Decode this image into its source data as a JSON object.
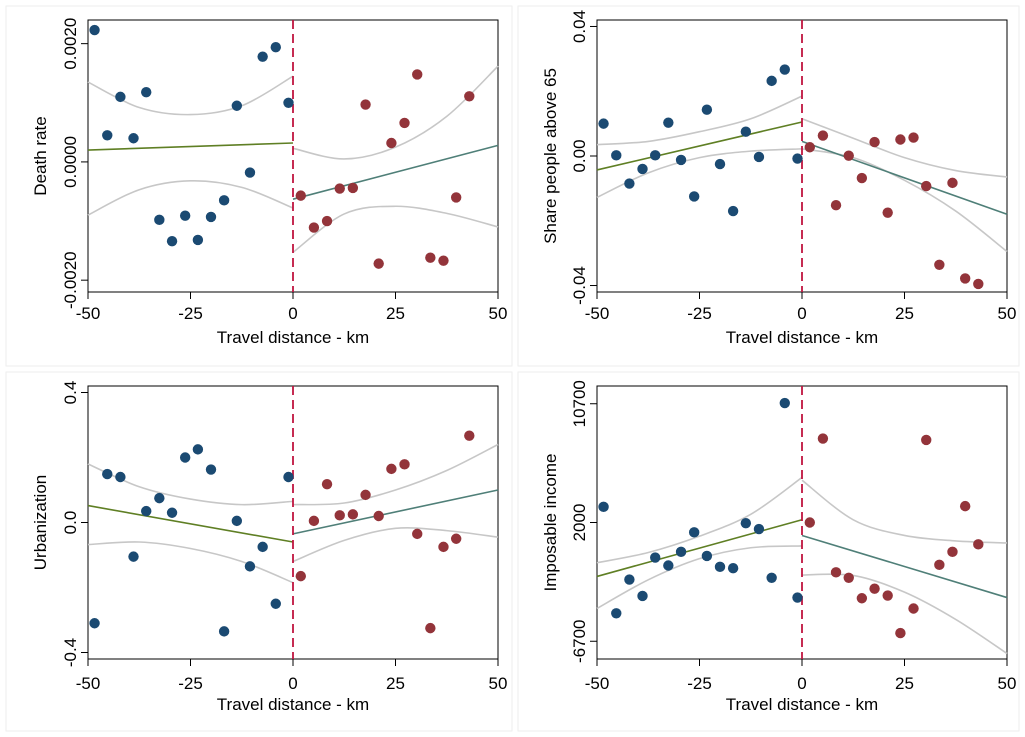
{
  "colors": {
    "left_points": "#1b4a72",
    "right_points": "#93343a",
    "left_fit": "#5f7f24",
    "right_fit": "#4f7f78",
    "ci": "#c7c7c7",
    "cutoff": "#c0143f",
    "frame": "#000000",
    "panel_border": "#eeeeee"
  },
  "chart_data": [
    {
      "type": "scatter",
      "xlabel": "Travel distance - km",
      "ylabel": "Death rate",
      "xlim": [
        -50,
        50
      ],
      "ylim": [
        -0.0022,
        0.0024
      ],
      "x_ticks": [
        -50,
        -25,
        0,
        25,
        50
      ],
      "x_tick_labels": [
        "-50",
        "-25",
        "0",
        "25",
        "50"
      ],
      "y_ticks": [
        -0.002,
        0,
        0.002
      ],
      "y_tick_labels": [
        "-0.0020",
        "0.0000",
        "0.0020"
      ],
      "cutoff": 0,
      "grid": false,
      "series": [
        {
          "side": "left",
          "points": [
            [
              -48.4,
              0.00223
            ],
            [
              -45.3,
              0.00045
            ],
            [
              -42.1,
              0.0011
            ],
            [
              -38.9,
              0.0004
            ],
            [
              -35.8,
              0.00118
            ],
            [
              -32.6,
              -0.00098
            ],
            [
              -29.5,
              -0.00134
            ],
            [
              -26.3,
              -0.00091
            ],
            [
              -23.2,
              -0.00132
            ],
            [
              -20.0,
              -0.00093
            ],
            [
              -16.8,
              -0.00065
            ],
            [
              -13.7,
              0.00095
            ],
            [
              -10.5,
              -0.00018
            ],
            [
              -7.4,
              0.00178
            ],
            [
              -4.2,
              0.00194
            ],
            [
              -1.1,
              0.001
            ]
          ]
        },
        {
          "side": "right",
          "points": [
            [
              1.9,
              -0.00057
            ],
            [
              5.1,
              -0.00111
            ],
            [
              8.3,
              -0.001
            ],
            [
              11.4,
              -0.00045
            ],
            [
              14.6,
              -0.00044
            ],
            [
              17.7,
              0.00097
            ],
            [
              20.9,
              -0.00172
            ],
            [
              24.0,
              0.00032
            ],
            [
              27.2,
              0.00066
            ],
            [
              30.3,
              0.00148
            ],
            [
              33.5,
              -0.00162
            ],
            [
              36.7,
              -0.00167
            ],
            [
              39.8,
              -0.0006
            ],
            [
              43.0,
              0.00111
            ]
          ]
        }
      ],
      "fit_left": {
        "x": [
          -50,
          0
        ],
        "y": [
          0.0002,
          0.00032
        ]
      },
      "fit_right": {
        "x": [
          0,
          50
        ],
        "y": [
          -0.00063,
          0.00028
        ]
      },
      "ci_left_upper": [
        [
          -50,
          0.00135
        ],
        [
          -37.5,
          0.00092
        ],
        [
          -25,
          0.0008
        ],
        [
          -12.5,
          0.00095
        ],
        [
          0,
          0.00145
        ]
      ],
      "ci_left_lower": [
        [
          -50,
          -0.0009
        ],
        [
          -37.5,
          -0.00047
        ],
        [
          -25,
          -0.00032
        ],
        [
          -12.5,
          -0.00043
        ],
        [
          0,
          -0.00078
        ]
      ],
      "ci_right_upper": [
        [
          0,
          0.00023
        ],
        [
          12.5,
          5e-05
        ],
        [
          25,
          0.00025
        ],
        [
          37.5,
          0.00077
        ],
        [
          50,
          0.00162
        ]
      ],
      "ci_right_lower": [
        [
          0,
          -0.00153
        ],
        [
          12.5,
          -0.00088
        ],
        [
          25,
          -0.00075
        ],
        [
          37.5,
          -0.00087
        ],
        [
          50,
          -0.0011
        ]
      ]
    },
    {
      "type": "scatter",
      "xlabel": "Travel distance - km",
      "ylabel": "Share people above 65",
      "xlim": [
        -50,
        50
      ],
      "ylim": [
        -0.042,
        0.042
      ],
      "x_ticks": [
        -50,
        -25,
        0,
        25,
        50
      ],
      "x_tick_labels": [
        "-50",
        "-25",
        "0",
        "25",
        "50"
      ],
      "y_ticks": [
        -0.04,
        0,
        0.04
      ],
      "y_tick_labels": [
        "-0.04",
        "0.00",
        "0.04"
      ],
      "cutoff": 0,
      "grid": false,
      "series": [
        {
          "side": "left",
          "points": [
            [
              -48.4,
              0.01
            ],
            [
              -45.3,
              0.0002
            ],
            [
              -42.1,
              -0.0085
            ],
            [
              -38.9,
              -0.004
            ],
            [
              -35.8,
              0.0002
            ],
            [
              -32.6,
              0.0103
            ],
            [
              -29.5,
              -0.0012
            ],
            [
              -26.3,
              -0.0125
            ],
            [
              -23.2,
              0.0143
            ],
            [
              -20.0,
              -0.0025
            ],
            [
              -16.8,
              -0.017
            ],
            [
              -13.7,
              0.0075
            ],
            [
              -10.5,
              -0.0003
            ],
            [
              -7.4,
              0.0232
            ],
            [
              -4.2,
              0.0267
            ],
            [
              -1.1,
              -0.0008
            ]
          ]
        },
        {
          "side": "right",
          "points": [
            [
              1.9,
              0.0027
            ],
            [
              5.1,
              0.0063
            ],
            [
              8.3,
              -0.0152
            ],
            [
              11.4,
              0.0001
            ],
            [
              14.6,
              -0.0068
            ],
            [
              17.7,
              0.0043
            ],
            [
              20.9,
              -0.0175
            ],
            [
              24.0,
              0.0051
            ],
            [
              27.2,
              0.0057
            ],
            [
              30.3,
              -0.0093
            ],
            [
              33.5,
              -0.0336
            ],
            [
              36.7,
              -0.0083
            ],
            [
              39.8,
              -0.0378
            ],
            [
              43.0,
              -0.0395
            ]
          ]
        }
      ],
      "fit_left": {
        "x": [
          -50,
          0
        ],
        "y": [
          -0.0043,
          0.0105
        ]
      },
      "fit_right": {
        "x": [
          0,
          50
        ],
        "y": [
          0.0045,
          -0.018
        ]
      },
      "ci_left_upper": [
        [
          -50,
          0.0035
        ],
        [
          -37.5,
          0.0045
        ],
        [
          -25,
          0.0075
        ],
        [
          -12.5,
          0.0115
        ],
        [
          0,
          0.0185
        ]
      ],
      "ci_left_lower": [
        [
          -50,
          -0.0128
        ],
        [
          -37.5,
          -0.0052
        ],
        [
          -25,
          -0.0005
        ],
        [
          -12.5,
          0.0015
        ],
        [
          0,
          0.0022
        ]
      ],
      "ci_right_upper": [
        [
          0,
          0.0115
        ],
        [
          12.5,
          0.0055
        ],
        [
          25,
          -0.0005
        ],
        [
          37.5,
          -0.0045
        ],
        [
          50,
          -0.0065
        ]
      ],
      "ci_right_lower": [
        [
          0,
          0.0022
        ],
        [
          12.5,
          -0.0005
        ],
        [
          25,
          -0.0075
        ],
        [
          37.5,
          -0.017
        ],
        [
          50,
          -0.0295
        ]
      ]
    },
    {
      "type": "scatter",
      "xlabel": "Travel distance - km",
      "ylabel": "Urbanization",
      "xlim": [
        -50,
        50
      ],
      "ylim": [
        -0.42,
        0.42
      ],
      "x_ticks": [
        -50,
        -25,
        0,
        25,
        50
      ],
      "x_tick_labels": [
        "-50",
        "-25",
        "0",
        "25",
        "50"
      ],
      "y_ticks": [
        -0.4,
        0,
        0.4
      ],
      "y_tick_labels": [
        "-0.4",
        "0.0",
        "0.4"
      ],
      "cutoff": 0,
      "grid": false,
      "series": [
        {
          "side": "left",
          "points": [
            [
              -48.4,
              -0.31
            ],
            [
              -45.3,
              0.149
            ],
            [
              -42.1,
              0.14
            ],
            [
              -38.9,
              -0.105
            ],
            [
              -35.8,
              0.035
            ],
            [
              -32.6,
              0.075
            ],
            [
              -29.5,
              0.03
            ],
            [
              -26.3,
              0.2
            ],
            [
              -23.2,
              0.225
            ],
            [
              -20.0,
              0.163
            ],
            [
              -16.8,
              -0.335
            ],
            [
              -13.7,
              0.005
            ],
            [
              -10.5,
              -0.135
            ],
            [
              -7.4,
              -0.075
            ],
            [
              -4.2,
              -0.25
            ],
            [
              -1.1,
              0.14
            ]
          ]
        },
        {
          "side": "right",
          "points": [
            [
              1.9,
              -0.165
            ],
            [
              5.1,
              0.005
            ],
            [
              8.3,
              0.118
            ],
            [
              11.4,
              0.022
            ],
            [
              14.6,
              0.025
            ],
            [
              17.7,
              0.085
            ],
            [
              20.9,
              0.02
            ],
            [
              24.0,
              0.165
            ],
            [
              27.2,
              0.179
            ],
            [
              30.3,
              -0.035
            ],
            [
              33.5,
              -0.325
            ],
            [
              36.7,
              -0.075
            ],
            [
              39.8,
              -0.05
            ],
            [
              43.0,
              0.267
            ]
          ]
        }
      ],
      "fit_left": {
        "x": [
          -50,
          0
        ],
        "y": [
          0.052,
          -0.06
        ]
      },
      "fit_right": {
        "x": [
          0,
          50
        ],
        "y": [
          -0.035,
          0.1
        ]
      },
      "ci_left_upper": [
        [
          -50,
          0.18
        ],
        [
          -37.5,
          0.11
        ],
        [
          -25,
          0.072
        ],
        [
          -12.5,
          0.055
        ],
        [
          0,
          0.065
        ]
      ],
      "ci_left_lower": [
        [
          -50,
          -0.068
        ],
        [
          -37.5,
          -0.06
        ],
        [
          -25,
          -0.08
        ],
        [
          -12.5,
          -0.12
        ],
        [
          0,
          -0.185
        ]
      ],
      "ci_right_upper": [
        [
          0,
          0.055
        ],
        [
          12.5,
          0.06
        ],
        [
          25,
          0.1
        ],
        [
          37.5,
          0.16
        ],
        [
          50,
          0.24
        ]
      ],
      "ci_right_lower": [
        [
          0,
          -0.12
        ],
        [
          12.5,
          -0.055
        ],
        [
          25,
          -0.018
        ],
        [
          37.5,
          -0.025
        ],
        [
          50,
          -0.045
        ]
      ]
    },
    {
      "type": "scatter",
      "xlabel": "Travel distance - km",
      "ylabel": "Imposable income",
      "xlim": [
        -50,
        50
      ],
      "ylim": [
        -8000,
        12000
      ],
      "x_ticks": [
        -50,
        -25,
        0,
        25,
        50
      ],
      "x_tick_labels": [
        "-50",
        "-25",
        "0",
        "25",
        "50"
      ],
      "y_ticks": [
        -6700,
        2000,
        10700
      ],
      "y_tick_labels": [
        "-6700",
        "2000",
        "10700"
      ],
      "cutoff": 0,
      "grid": false,
      "series": [
        {
          "side": "left",
          "points": [
            [
              -48.4,
              3150
            ],
            [
              -45.3,
              -4650
            ],
            [
              -42.1,
              -2180
            ],
            [
              -38.9,
              -3380
            ],
            [
              -35.8,
              -568
            ],
            [
              -32.6,
              -1150
            ],
            [
              -29.5,
              -150
            ],
            [
              -26.3,
              1280
            ],
            [
              -23.2,
              -450
            ],
            [
              -20.0,
              -1250
            ],
            [
              -16.8,
              -1350
            ],
            [
              -13.7,
              1950
            ],
            [
              -10.5,
              1520
            ],
            [
              -7.4,
              -2050
            ],
            [
              -4.2,
              10750
            ],
            [
              -1.1,
              -3500
            ]
          ]
        },
        {
          "side": "right",
          "points": [
            [
              1.9,
              2000
            ],
            [
              5.1,
              8150
            ],
            [
              8.3,
              -1650
            ],
            [
              11.4,
              -2050
            ],
            [
              14.6,
              -3550
            ],
            [
              17.7,
              -2850
            ],
            [
              20.9,
              -3350
            ],
            [
              24.0,
              -6100
            ],
            [
              27.2,
              -4300
            ],
            [
              30.3,
              8050
            ],
            [
              33.5,
              -1100
            ],
            [
              36.7,
              -150
            ],
            [
              39.8,
              3200
            ],
            [
              43.0,
              400
            ]
          ]
        }
      ],
      "fit_left": {
        "x": [
          -50,
          0
        ],
        "y": [
          -1950,
          2200
        ]
      },
      "fit_right": {
        "x": [
          0,
          50
        ],
        "y": [
          1050,
          -3500
        ]
      },
      "ci_left_upper": [
        [
          -50,
          -950
        ],
        [
          -37.5,
          -200
        ],
        [
          -25,
          1000
        ],
        [
          -12.5,
          2600
        ],
        [
          0,
          5300
        ]
      ],
      "ci_left_lower": [
        [
          -50,
          -4300
        ],
        [
          -37.5,
          -2200
        ],
        [
          -25,
          -650
        ],
        [
          -12.5,
          150
        ],
        [
          0,
          280
        ]
      ],
      "ci_right_upper": [
        [
          0,
          5100
        ],
        [
          12.5,
          2200
        ],
        [
          25,
          1050
        ],
        [
          37.5,
          650
        ],
        [
          50,
          500
        ]
      ],
      "ci_right_lower": [
        [
          0,
          -1850
        ],
        [
          12.5,
          -1880
        ],
        [
          25,
          -3100
        ],
        [
          37.5,
          -5100
        ],
        [
          50,
          -7600
        ]
      ]
    }
  ]
}
